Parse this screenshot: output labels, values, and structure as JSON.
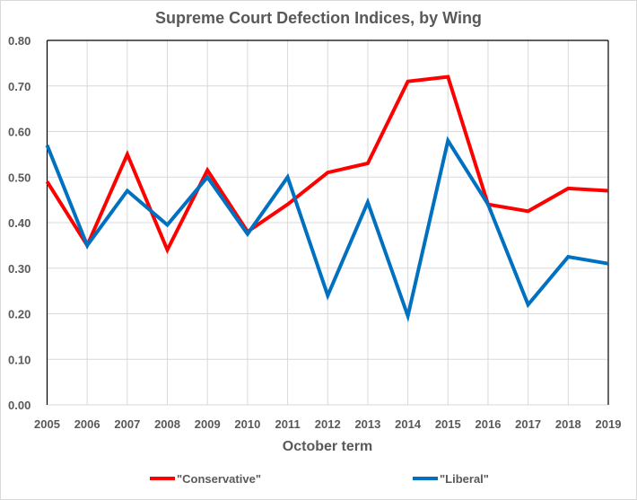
{
  "chart_data": {
    "type": "line",
    "title": "Supreme Court Defection Indices, by Wing",
    "xlabel": "October term",
    "ylabel": "",
    "x": [
      "2005",
      "2006",
      "2007",
      "2008",
      "2009",
      "2010",
      "2011",
      "2012",
      "2013",
      "2014",
      "2015",
      "2016",
      "2017",
      "2018",
      "2019"
    ],
    "ylim": [
      0,
      0.8
    ],
    "yticks": [
      "0.00",
      "0.10",
      "0.20",
      "0.30",
      "0.40",
      "0.50",
      "0.60",
      "0.70",
      "0.80"
    ],
    "grid": true,
    "legend": "bottom",
    "series": [
      {
        "name": "\"Conservative\"",
        "color": "#ff0000",
        "values": [
          0.49,
          0.35,
          0.55,
          0.34,
          0.515,
          0.38,
          0.44,
          0.51,
          0.53,
          0.71,
          0.72,
          0.44,
          0.425,
          0.475,
          0.47
        ]
      },
      {
        "name": "\"Liberal\"",
        "color": "#0070c0",
        "values": [
          0.57,
          0.35,
          0.47,
          0.395,
          0.5,
          0.375,
          0.5,
          0.24,
          0.445,
          0.195,
          0.58,
          0.44,
          0.22,
          0.325,
          0.31
        ]
      }
    ]
  }
}
